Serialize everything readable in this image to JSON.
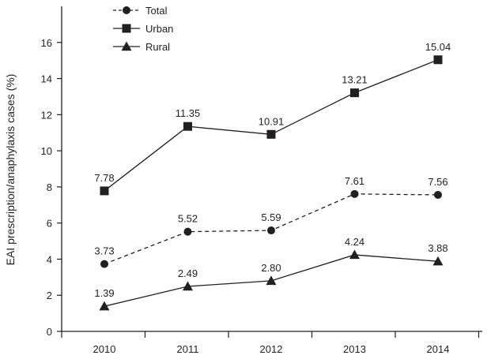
{
  "chart_data": {
    "type": "line",
    "title": "",
    "xlabel": "",
    "ylabel": "EAI prescription/anaphylaxis cases (%)",
    "categories": [
      "2010",
      "2011",
      "2012",
      "2013",
      "2014"
    ],
    "ylim": [
      0,
      18
    ],
    "yticks": [
      0,
      2,
      4,
      6,
      8,
      10,
      12,
      14,
      16
    ],
    "grid": false,
    "legend_position": "top-left",
    "series": [
      {
        "name": "Total",
        "marker": "circle",
        "line": "dashed",
        "values": [
          3.73,
          5.52,
          5.59,
          7.61,
          7.56
        ],
        "labels": [
          "3.73",
          "5.52",
          "5.59",
          "7.61",
          "7.56"
        ]
      },
      {
        "name": "Urban",
        "marker": "square",
        "line": "solid",
        "values": [
          7.78,
          11.35,
          10.91,
          13.21,
          15.04
        ],
        "labels": [
          "7.78",
          "11.35",
          "10.91",
          "13.21",
          "15.04"
        ]
      },
      {
        "name": "Rural",
        "marker": "triangle",
        "line": "solid",
        "values": [
          1.39,
          2.49,
          2.8,
          4.24,
          3.88
        ],
        "labels": [
          "1.39",
          "2.49",
          "2.80",
          "4.24",
          "3.88"
        ]
      }
    ]
  }
}
